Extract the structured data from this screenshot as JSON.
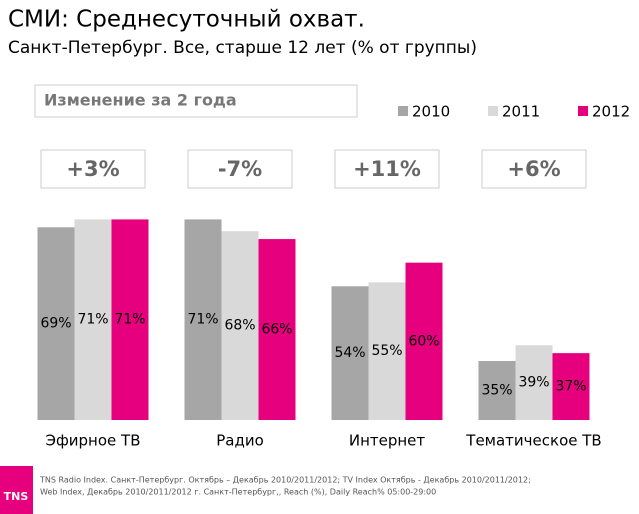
{
  "chart_data": {
    "type": "bar",
    "title": "СМИ: Среднесуточный охват.",
    "subtitle": "Санкт-Петербург. Все, старше 12 лет (% от группы)",
    "change_title": "Изменение за 2 года",
    "changes": [
      "+3%",
      "-7%",
      "+11%",
      "+6%"
    ],
    "categories": [
      "Эфирное ТВ",
      "Радио",
      "Интернет",
      "Тематическое ТВ"
    ],
    "series": [
      {
        "name": "2010",
        "color": "#a6a6a6",
        "values": [
          69,
          71,
          54,
          35
        ],
        "value_labels": [
          "69%",
          "71%",
          "54%",
          "35%"
        ]
      },
      {
        "name": "2011",
        "color": "#d9d9d9",
        "values": [
          71,
          68,
          55,
          39
        ],
        "value_labels": [
          "71%",
          "68%",
          "55%",
          "39%"
        ]
      },
      {
        "name": "2012",
        "color": "#e6007e",
        "values": [
          71,
          66,
          60,
          37
        ],
        "value_labels": [
          "71%",
          "66%",
          "60%",
          "37%"
        ]
      }
    ],
    "ylim": [
      20,
      80
    ]
  },
  "logo": "TNS",
  "footer": [
    "TNS Radio Index. Санкт-Петербург. Октябрь – Декабрь 2010/2011/2012; TV Index Октябрь - Декабрь 2010/2011/2012;",
    "Web Index, Декабрь 2010/2011/2012 г. Санкт-Петербург,, Reach (%), Daily Reach% 05:00-29:00"
  ]
}
